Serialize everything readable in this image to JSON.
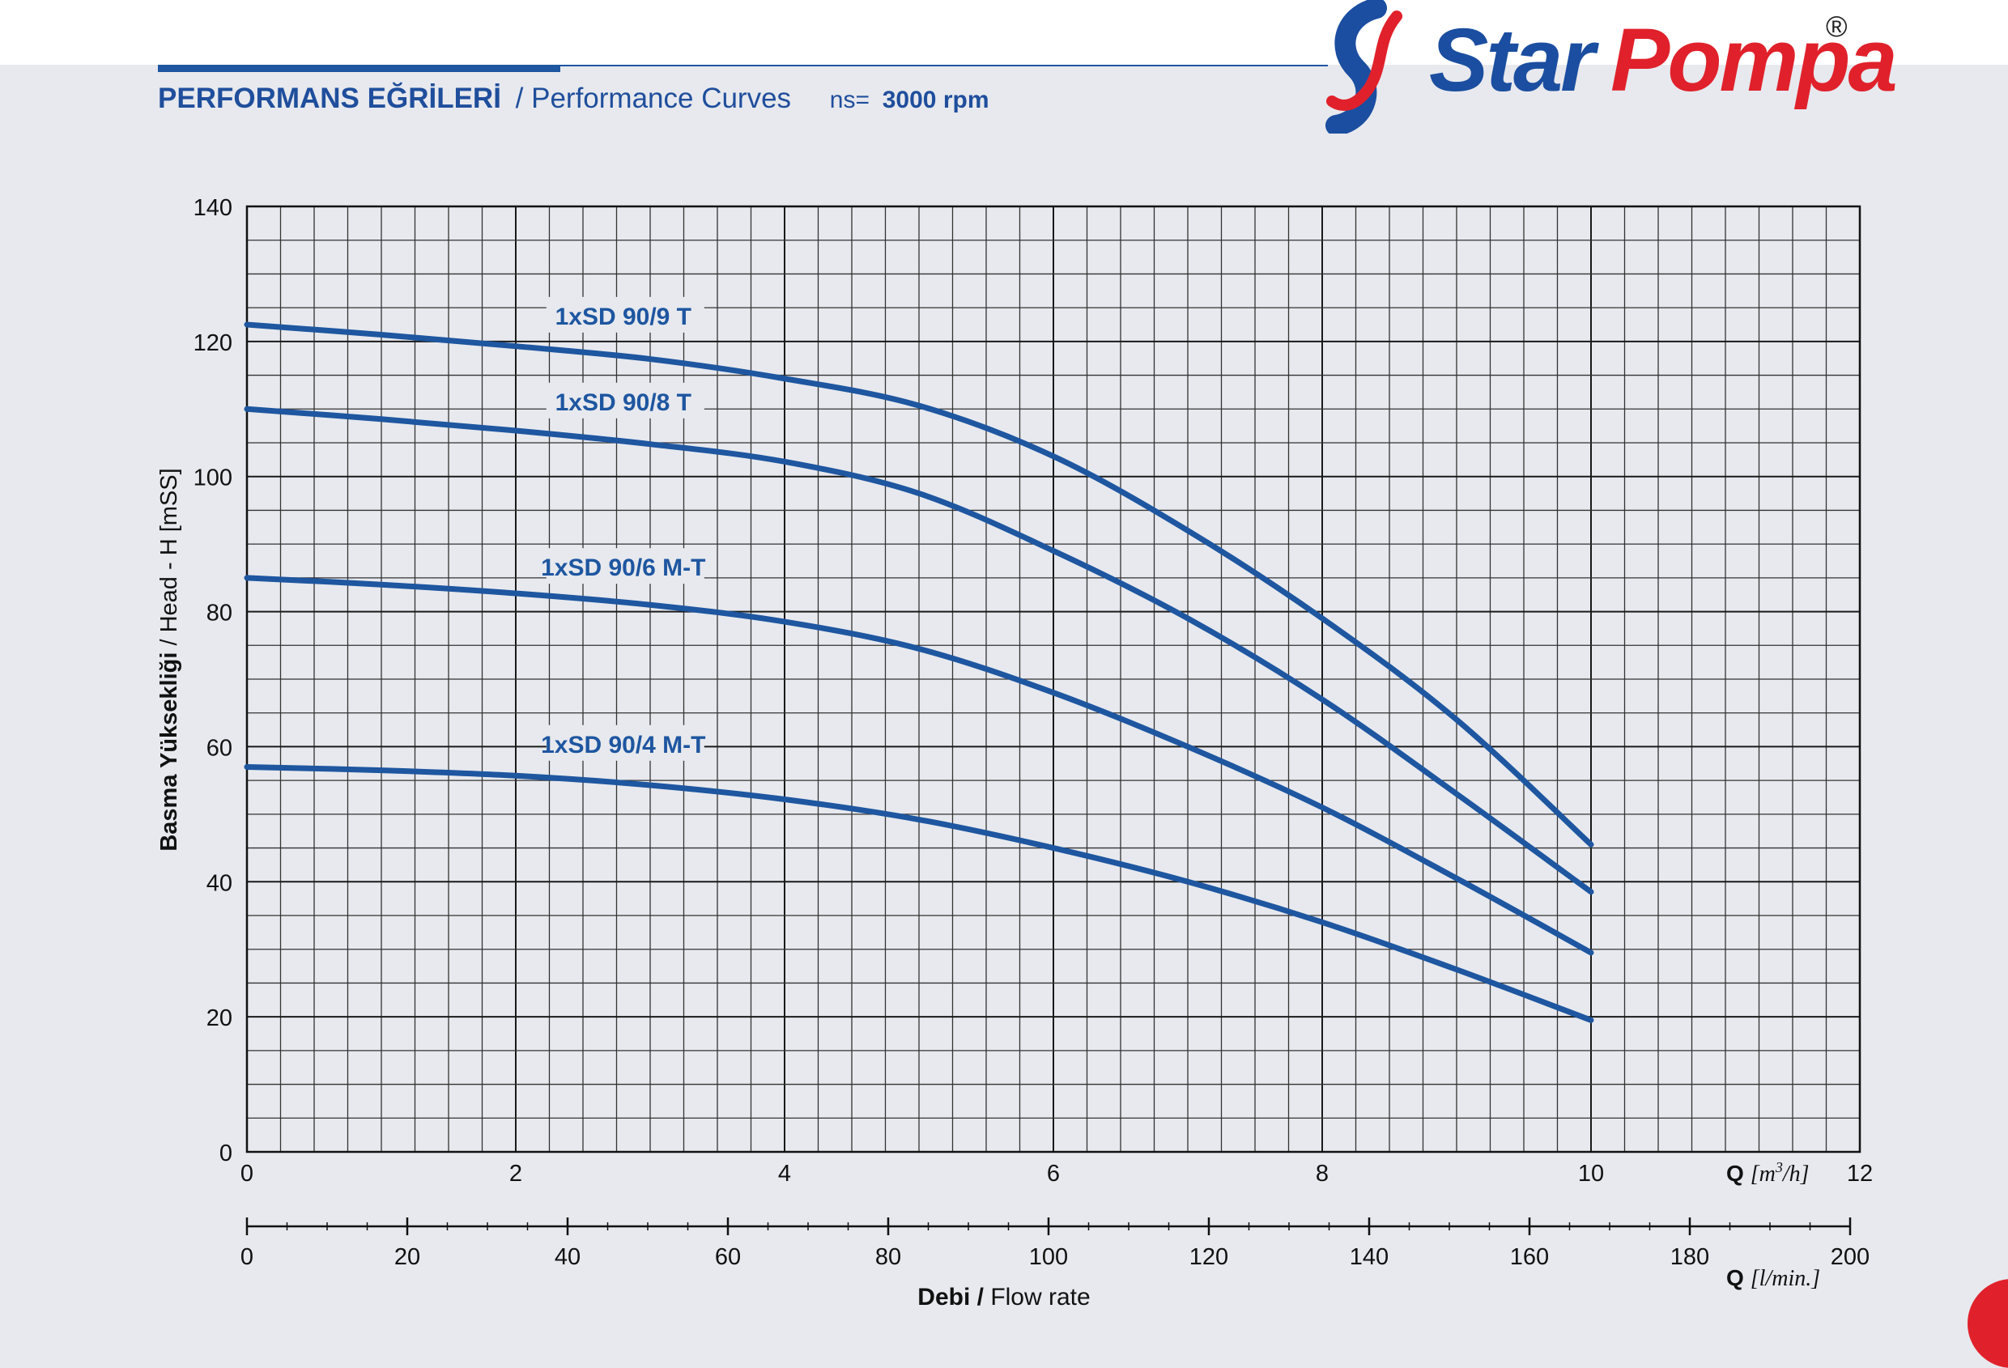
{
  "header": {
    "title_tr": "PERFORMANS EĞRİLERİ",
    "title_en": "/ Performance Curves",
    "speed_label": "ns=",
    "speed_value": "3000 rpm"
  },
  "logo": {
    "word1": "Star",
    "word2": "Pompa",
    "registered": "®",
    "brand_blue": "#1b4ea0",
    "brand_red": "#e0212b"
  },
  "chart_data": {
    "type": "line",
    "x_unit": "Q [m³/h]",
    "xlim": [
      0,
      12
    ],
    "x_ticks": [
      0,
      2,
      4,
      6,
      8,
      10,
      12
    ],
    "x_tick_labels": [
      "0",
      "2",
      "4",
      "6",
      "8",
      "10",
      "12"
    ],
    "x_unit_parts": {
      "q": "Q",
      "unit_pre": "[m",
      "sup": "3",
      "unit_post": "/h]"
    },
    "x2_unit": "Q [l/min.]",
    "x2_unit_parts": {
      "q": "Q",
      "unit": "[l/min.]"
    },
    "x2lim": [
      0,
      200
    ],
    "x2_ticks": [
      0,
      20,
      40,
      60,
      80,
      100,
      120,
      140,
      160,
      180,
      200
    ],
    "x2_tick_labels": [
      "0",
      "20",
      "40",
      "60",
      "80",
      "100",
      "120",
      "140",
      "160",
      "180",
      "200"
    ],
    "xlabel": {
      "bold": "Debi /",
      "normal": " Flow rate"
    },
    "ylabel": {
      "bold": "Basma Yüksekliği",
      "normal": " / Head - H [mSS]"
    },
    "ylim": [
      0,
      140
    ],
    "y_ticks": [
      0,
      20,
      40,
      60,
      80,
      100,
      120,
      140
    ],
    "y_tick_labels": [
      "0",
      "20",
      "40",
      "60",
      "80",
      "100",
      "120",
      "140"
    ],
    "grid": true,
    "line_color": "#1e56a0",
    "series": [
      {
        "name": "1xSD 90/9 T",
        "label_at": [
          2.8,
          123
        ],
        "x": [
          0,
          1,
          2,
          3,
          4,
          5,
          6,
          7,
          8,
          9,
          10
        ],
        "y": [
          122.5,
          121,
          119.3,
          117.4,
          114.5,
          110.5,
          103,
          92,
          79,
          64,
          45.5
        ]
      },
      {
        "name": "1xSD 90/8 T",
        "label_at": [
          2.8,
          110.3
        ],
        "x": [
          0,
          1,
          2,
          3,
          4,
          5,
          6,
          7,
          8,
          9,
          10
        ],
        "y": [
          110,
          108.5,
          106.8,
          104.8,
          102.2,
          97.5,
          89,
          79,
          67,
          53,
          38.5
        ]
      },
      {
        "name": "1xSD 90/6 M-T",
        "label_at": [
          2.8,
          85.8
        ],
        "x": [
          0,
          1,
          2,
          3,
          4,
          5,
          6,
          7,
          8,
          9,
          10
        ],
        "y": [
          85,
          84,
          82.7,
          81,
          78.5,
          74.5,
          68,
          60,
          51,
          40.5,
          29.5
        ]
      },
      {
        "name": "1xSD 90/4 M-T",
        "label_at": [
          2.8,
          59.6
        ],
        "x": [
          0,
          1,
          2,
          3,
          4,
          5,
          6,
          7,
          8,
          9,
          10
        ],
        "y": [
          57,
          56.5,
          55.7,
          54.3,
          52.2,
          49.2,
          45,
          40,
          34,
          27,
          19.5
        ]
      }
    ]
  }
}
